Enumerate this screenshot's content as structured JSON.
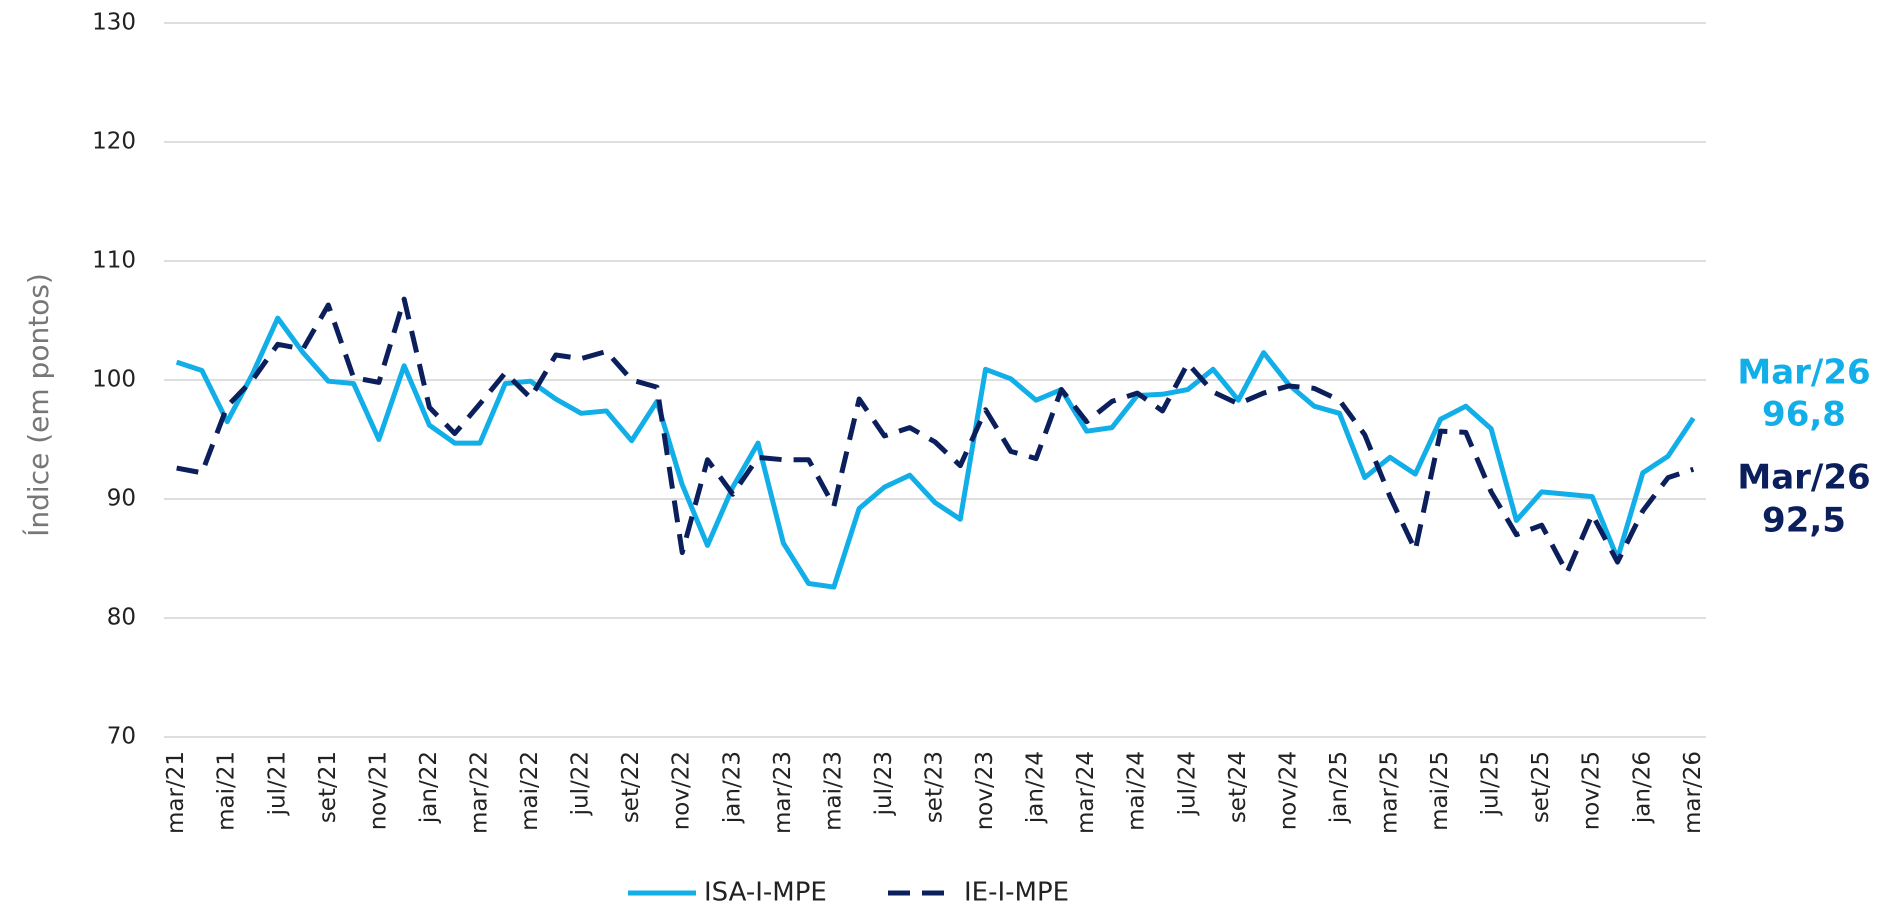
{
  "chart_data": {
    "type": "line",
    "y_label": "Índice (em pontos)",
    "categories": [
      "mar/21",
      null,
      "mai/21",
      null,
      "jul/21",
      null,
      "set/21",
      null,
      "nov/21",
      null,
      "jan/22",
      null,
      "mar/22",
      null,
      "mai/22",
      null,
      "jul/22",
      null,
      "set/22",
      null,
      "nov/22",
      null,
      "jan/23",
      null,
      "mar/23",
      null,
      "mai/23",
      null,
      "jul/23",
      null,
      "set/23",
      null,
      "nov/23",
      null,
      "jan/24",
      null,
      "mar/24",
      null,
      "mai/24",
      null,
      "jul/24",
      null,
      "set/24",
      null,
      "nov/24",
      null,
      "jan/25",
      null,
      "mar/25",
      null,
      "mai/25",
      null,
      "jul/25",
      null,
      "set/25",
      null,
      "nov/25",
      null,
      "jan/26",
      null,
      "mar/26"
    ],
    "series": [
      {
        "name": "ISA-I-MPE",
        "color": "#12aee8",
        "dashed": false,
        "values": [
          101.5,
          100.8,
          96.5,
          100.5,
          105.2,
          102.3,
          99.9,
          99.7,
          95.0,
          101.2,
          96.2,
          94.7,
          94.7,
          99.7,
          99.9,
          98.4,
          97.2,
          97.4,
          94.9,
          98.2,
          91.2,
          86.1,
          91.0,
          94.7,
          86.3,
          82.9,
          82.6,
          89.2,
          91.0,
          92.0,
          89.7,
          88.3,
          100.9,
          100.1,
          98.3,
          99.2,
          95.7,
          96.0,
          98.7,
          98.8,
          99.2,
          100.9,
          98.3,
          102.3,
          99.6,
          97.8,
          97.2,
          91.8,
          93.5,
          92.1,
          96.7,
          97.8,
          95.9,
          88.2,
          90.6,
          90.4,
          90.2,
          85.0,
          92.2,
          93.6,
          96.8
        ]
      },
      {
        "name": "IE-I-MPE",
        "color": "#0b1f5c",
        "dashed": true,
        "values": [
          92.6,
          92.2,
          97.8,
          100.0,
          103.0,
          102.6,
          106.3,
          100.2,
          99.8,
          106.8,
          97.7,
          95.5,
          98.0,
          100.6,
          98.5,
          102.1,
          101.8,
          102.4,
          100.0,
          99.4,
          85.5,
          93.3,
          90.4,
          93.5,
          93.3,
          93.3,
          89.4,
          98.4,
          95.3,
          96.0,
          94.8,
          92.8,
          97.5,
          94.0,
          93.4,
          99.2,
          96.5,
          98.2,
          98.9,
          97.4,
          101.4,
          99.0,
          98.0,
          98.9,
          99.5,
          99.3,
          98.3,
          95.4,
          90.2,
          85.7,
          95.7,
          95.6,
          90.6,
          87.0,
          87.8,
          83.8,
          88.7,
          84.7,
          89.0,
          91.8,
          92.5
        ]
      }
    ],
    "annotations": [
      {
        "period": "Mar/26",
        "value_label": "96,8",
        "color": "#12aee8"
      },
      {
        "period": "Mar/26",
        "value_label": "92,5",
        "color": "#0b1f5c"
      }
    ],
    "ylim": [
      70,
      130
    ],
    "yticks": [
      70,
      80,
      90,
      100,
      110,
      120,
      130
    ],
    "grid": true,
    "legend": "bottom"
  }
}
